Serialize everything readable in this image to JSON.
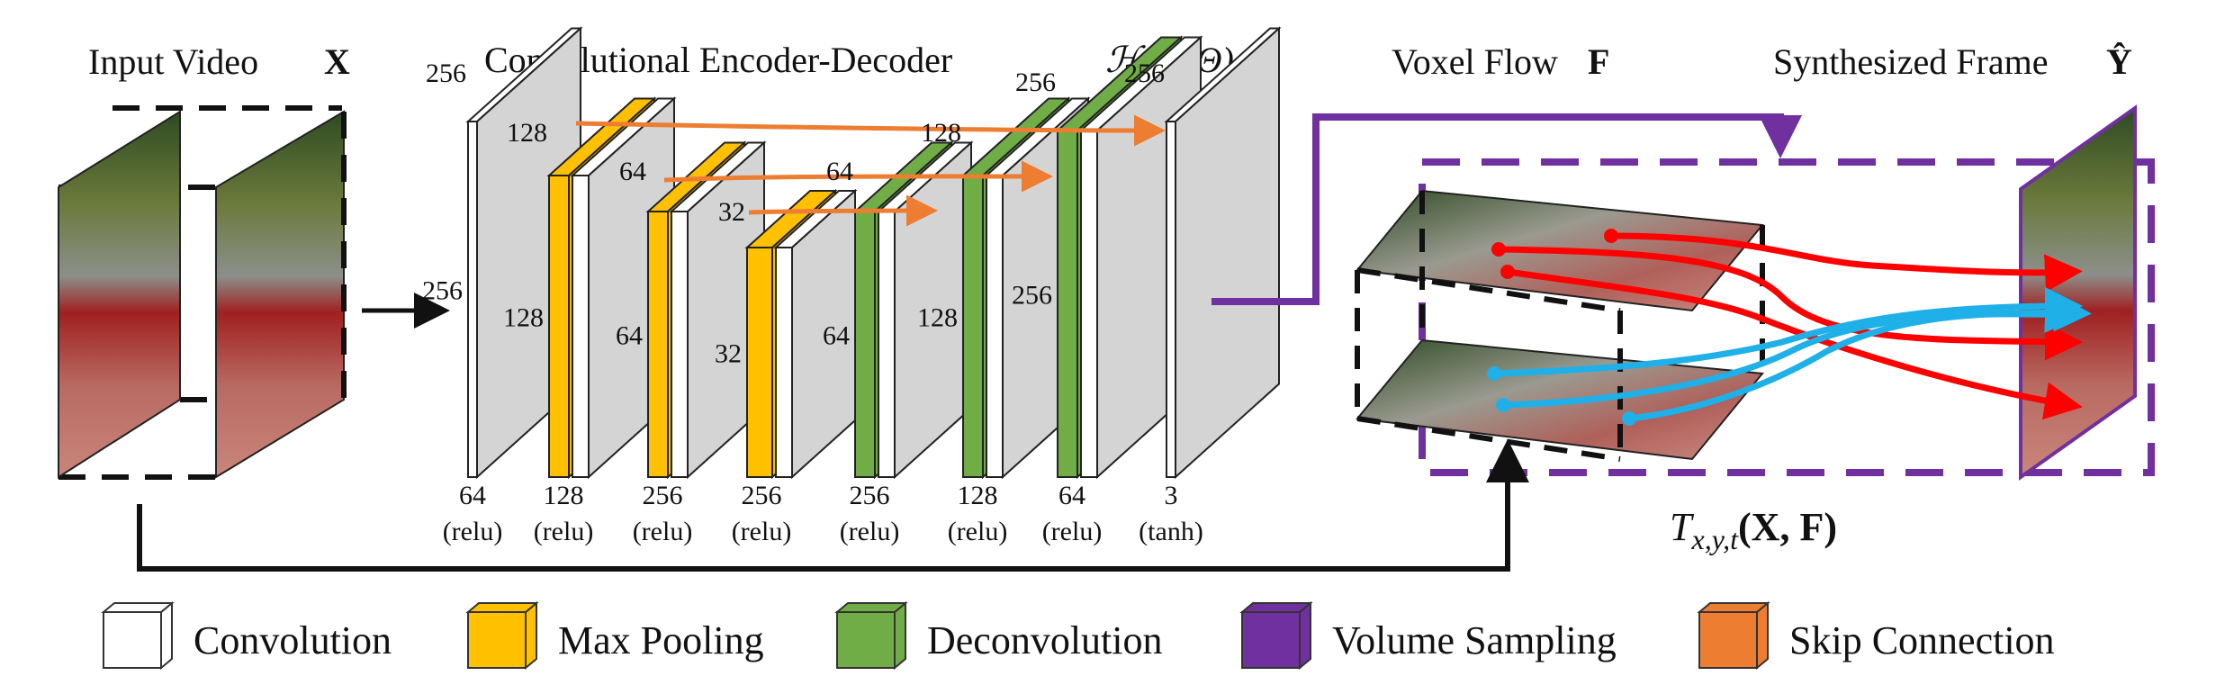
{
  "titles": {
    "input_video": "Input Video",
    "input_video_symbol": "X",
    "encoder_decoder": "Convolutional Encoder-Decoder",
    "encoder_decoder_symbol": "ℋ(X; Θ)",
    "voxel_flow": "Voxel Flow",
    "voxel_flow_symbol": "F",
    "synthesized_frame": "Synthesized Frame",
    "synthesized_frame_symbol": "Ŷ"
  },
  "sampling_formula": "T",
  "sampling_formula_subscript": "x,y,t",
  "sampling_formula_args": "(X, F)",
  "layers": [
    {
      "type": "Convolution",
      "channels": "64",
      "activation": "(relu)",
      "size_top": "256",
      "size_side": "256"
    },
    {
      "type": "Max Pooling",
      "channels": "128",
      "activation": "(relu)",
      "size_top": "128",
      "size_side": "128"
    },
    {
      "type": "Max Pooling",
      "channels": "256",
      "activation": "(relu)",
      "size_top": "64",
      "size_side": "64"
    },
    {
      "type": "Max Pooling",
      "channels": "256",
      "activation": "(relu)",
      "size_top": "32",
      "size_side": "32"
    },
    {
      "type": "Deconvolution",
      "channels": "256",
      "activation": "(relu)",
      "size_top": "64",
      "size_side": "64"
    },
    {
      "type": "Deconvolution",
      "channels": "128",
      "activation": "(relu)",
      "size_top": "128",
      "size_side": "128"
    },
    {
      "type": "Deconvolution",
      "channels": "64",
      "activation": "(relu)",
      "size_top": "256",
      "size_side": "256"
    },
    {
      "type": "Convolution",
      "channels": "3",
      "activation": "(tanh)",
      "size_top": "256",
      "size_side": ""
    }
  ],
  "legend": [
    {
      "label": "Convolution",
      "color": "#ffffff"
    },
    {
      "label": "Max Pooling",
      "color": "#ffc000"
    },
    {
      "label": "Deconvolution",
      "color": "#70ad47"
    },
    {
      "label": "Volume Sampling",
      "color": "#7030a0"
    },
    {
      "label": "Skip Connection",
      "color": "#ed7d31"
    }
  ],
  "colors": {
    "convolution": "#ffffff",
    "max_pooling": "#ffc000",
    "deconvolution": "#70ad47",
    "volume_sampling": "#7030a0",
    "skip_connection": "#ed7d31",
    "flow_forward": "#ff0000",
    "flow_backward": "#1fb0e8",
    "feature_map": "#d4d4d4"
  }
}
